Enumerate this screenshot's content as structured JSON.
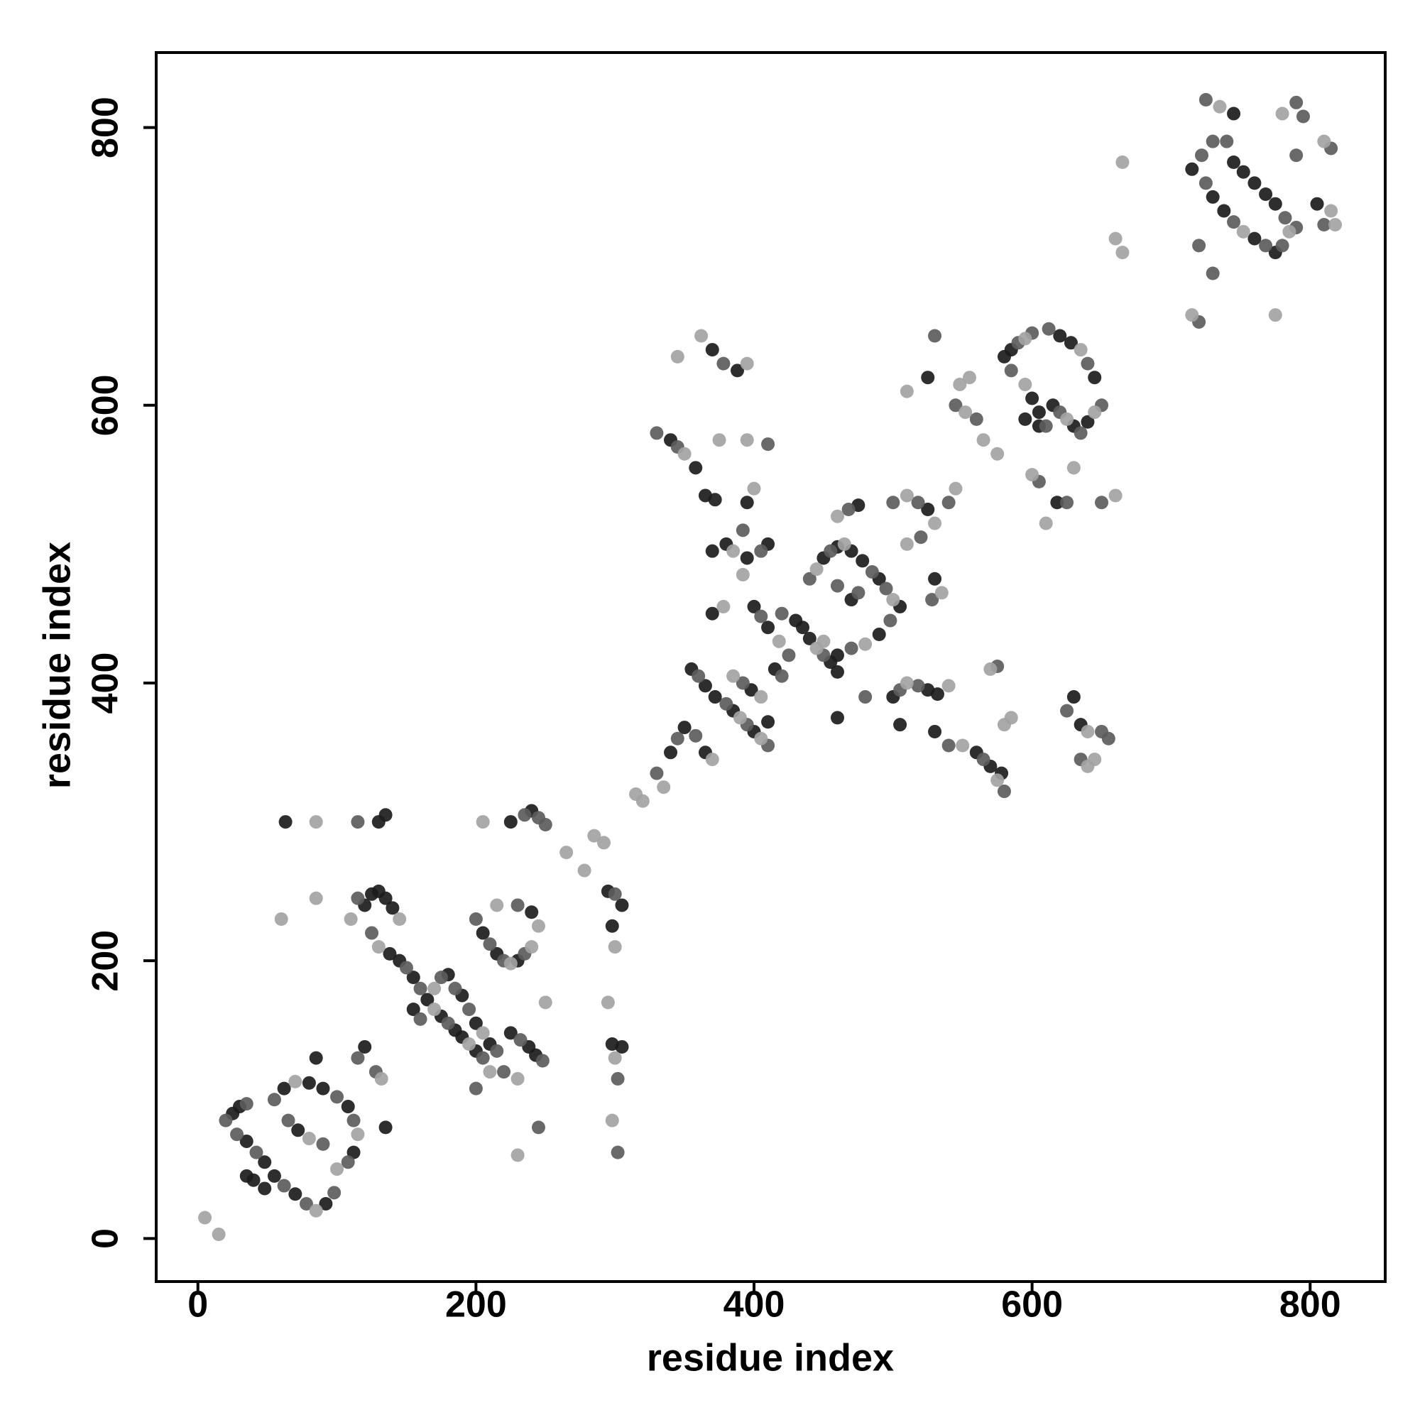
{
  "chart_data": {
    "type": "scatter",
    "xlabel": "residue index",
    "ylabel": "residue index",
    "xlim": [
      -30,
      854
    ],
    "ylim": [
      -31,
      854
    ],
    "xticks": [
      0,
      200,
      400,
      600,
      800
    ],
    "yticks": [
      0,
      200,
      400,
      600,
      800
    ],
    "grid": false,
    "series": [
      {
        "color": "#1c1c1c",
        "x": [
          25,
          30,
          35,
          48,
          55,
          70,
          92,
          35,
          40,
          48,
          62,
          80,
          90,
          108,
          112,
          72,
          85,
          63,
          130,
          135,
          120,
          135,
          120,
          125,
          130,
          135,
          140,
          138,
          145,
          155,
          165,
          175,
          185,
          190,
          200,
          155,
          180,
          190,
          200,
          210,
          205,
          215,
          230,
          240,
          225,
          238,
          243,
          225,
          240,
          295,
          305,
          298,
          298,
          305,
          340,
          358,
          365,
          372,
          380,
          370,
          370,
          388,
          395,
          395,
          410,
          370,
          340,
          350,
          365,
          355,
          365,
          372,
          385,
          400,
          398,
          410,
          400,
          410,
          415,
          430,
          435,
          440,
          455,
          460,
          450,
          460,
          470,
          478,
          490,
          505,
          490,
          460,
          470,
          475,
          500,
          525,
          532,
          505,
          530,
          560,
          570,
          578,
          460,
          525,
          530,
          525,
          580,
          585,
          600,
          605,
          595,
          605,
          615,
          630,
          640,
          645,
          628,
          620,
          618,
          630,
          635,
          715,
          730,
          738,
          760,
          775,
          745,
          752,
          760,
          768,
          775,
          745,
          805
        ],
        "values": [
          90,
          95,
          70,
          55,
          45,
          32,
          25,
          45,
          42,
          36,
          108,
          112,
          108,
          95,
          62,
          78,
          130,
          300,
          300,
          305,
          138,
          80,
          240,
          248,
          250,
          245,
          238,
          205,
          200,
          188,
          172,
          160,
          150,
          145,
          135,
          165,
          190,
          175,
          155,
          140,
          220,
          205,
          200,
          235,
          148,
          138,
          132,
          300,
          308,
          250,
          240,
          225,
          140,
          138,
          575,
          555,
          535,
          532,
          500,
          495,
          640,
          625,
          530,
          490,
          500,
          450,
          350,
          368,
          350,
          410,
          398,
          390,
          380,
          365,
          395,
          372,
          455,
          440,
          410,
          445,
          440,
          432,
          415,
          408,
          490,
          498,
          495,
          488,
          475,
          455,
          435,
          420,
          460,
          528,
          390,
          395,
          392,
          370,
          365,
          350,
          340,
          335,
          375,
          525,
          475,
          620,
          635,
          640,
          605,
          595,
          590,
          585,
          600,
          585,
          588,
          620,
          645,
          650,
          530,
          390,
          370,
          770,
          750,
          740,
          720,
          710,
          775,
          768,
          760,
          752,
          745,
          810,
          745
        ]
      },
      {
        "color": "#5c5c5c",
        "x": [
          20,
          35,
          28,
          42,
          62,
          78,
          98,
          55,
          100,
          112,
          108,
          65,
          90,
          115,
          115,
          128,
          115,
          125,
          150,
          160,
          180,
          205,
          160,
          175,
          185,
          195,
          215,
          220,
          200,
          210,
          220,
          235,
          230,
          232,
          248,
          245,
          200,
          235,
          245,
          250,
          300,
          302,
          302,
          330,
          330,
          345,
          378,
          410,
          392,
          405,
          345,
          358,
          360,
          380,
          395,
          410,
          392,
          420,
          405,
          425,
          420,
          450,
          440,
          455,
          485,
          495,
          498,
          470,
          460,
          475,
          468,
          505,
          518,
          540,
          565,
          580,
          575,
          480,
          500,
          518,
          520,
          528,
          540,
          530,
          545,
          560,
          590,
          600,
          585,
          610,
          620,
          635,
          650,
          640,
          612,
          605,
          625,
          650,
          625,
          650,
          655,
          635,
          720,
          722,
          730,
          725,
          745,
          768,
          780,
          782,
          790,
          740,
          725,
          790,
          795,
          790,
          815,
          810,
          720,
          730
        ],
        "values": [
          85,
          97,
          75,
          62,
          38,
          25,
          33,
          100,
          102,
          85,
          55,
          85,
          68,
          300,
          130,
          120,
          245,
          220,
          195,
          180,
          155,
          130,
          158,
          188,
          180,
          165,
          135,
          120,
          230,
          212,
          200,
          205,
          240,
          143,
          128,
          80,
          108,
          305,
          303,
          298,
          248,
          115,
          62,
          335,
          580,
          570,
          630,
          572,
          510,
          495,
          360,
          362,
          405,
          385,
          370,
          355,
          400,
          405,
          448,
          420,
          450,
          420,
          475,
          495,
          480,
          468,
          445,
          425,
          470,
          465,
          525,
          395,
          398,
          355,
          345,
          322,
          412,
          390,
          530,
          530,
          505,
          460,
          530,
          650,
          600,
          590,
          645,
          652,
          625,
          585,
          595,
          580,
          600,
          630,
          655,
          545,
          530,
          530,
          380,
          365,
          360,
          345,
          660,
          780,
          790,
          760,
          732,
          715,
          715,
          735,
          728,
          790,
          820,
          818,
          808,
          780,
          785,
          730,
          715,
          695
        ]
      },
      {
        "color": "#a3a3a3",
        "x": [
          5,
          15,
          85,
          70,
          115,
          100,
          80,
          60,
          85,
          85,
          132,
          110,
          145,
          130,
          170,
          195,
          170,
          205,
          210,
          225,
          240,
          215,
          245,
          230,
          230,
          250,
          205,
          265,
          278,
          285,
          292,
          300,
          295,
          300,
          298,
          315,
          320,
          335,
          350,
          385,
          345,
          362,
          395,
          375,
          395,
          400,
          392,
          378,
          370,
          390,
          405,
          385,
          405,
          418,
          445,
          445,
          465,
          500,
          480,
          450,
          460,
          510,
          540,
          550,
          575,
          570,
          580,
          585,
          510,
          530,
          510,
          535,
          545,
          510,
          548,
          555,
          552,
          565,
          575,
          595,
          595,
          625,
          645,
          635,
          600,
          610,
          630,
          660,
          640,
          640,
          645,
          660,
          665,
          665,
          715,
          752,
          785,
          735,
          780,
          810,
          815,
          818,
          775
        ],
        "values": [
          15,
          3,
          20,
          113,
          75,
          50,
          72,
          230,
          300,
          245,
          115,
          230,
          230,
          210,
          165,
          140,
          180,
          148,
          120,
          198,
          210,
          240,
          225,
          115,
          60,
          170,
          300,
          278,
          265,
          290,
          285,
          210,
          170,
          130,
          85,
          320,
          315,
          325,
          565,
          495,
          635,
          650,
          630,
          575,
          575,
          540,
          478,
          455,
          345,
          375,
          360,
          405,
          390,
          430,
          425,
          482,
          500,
          460,
          428,
          430,
          520,
          400,
          398,
          355,
          330,
          410,
          370,
          375,
          535,
          515,
          500,
          465,
          540,
          610,
          615,
          620,
          595,
          575,
          565,
          648,
          615,
          590,
          595,
          640,
          550,
          515,
          555,
          535,
          365,
          340,
          345,
          720,
          710,
          775,
          665,
          725,
          725,
          815,
          810,
          790,
          740,
          730,
          665
        ]
      }
    ]
  }
}
